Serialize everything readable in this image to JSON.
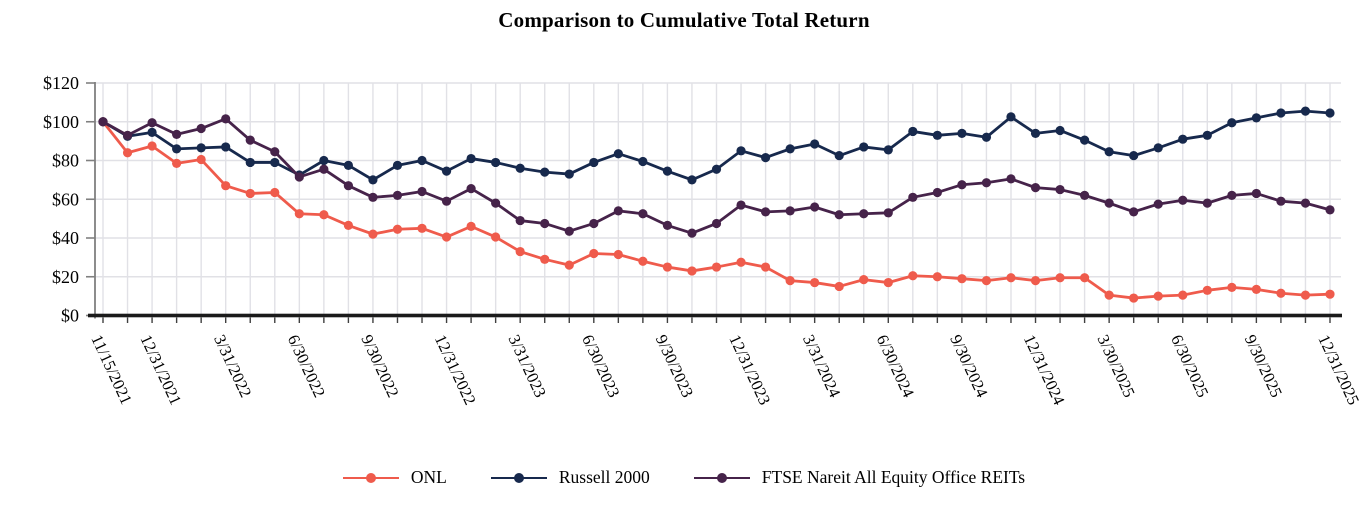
{
  "title": "Comparison to Cumulative Total Return",
  "legend": {
    "items": [
      {
        "label": "ONL",
        "color": "#EF5B4C"
      },
      {
        "label": "Russell 2000",
        "color": "#17294D"
      },
      {
        "label": "FTSE Nareit All Equity Office REITs",
        "color": "#46234A"
      }
    ]
  },
  "chart_data": {
    "type": "line",
    "title": "Comparison to Cumulative Total Return",
    "xlabel": "",
    "ylabel": "",
    "ylim": [
      0,
      120
    ],
    "y_step": 20,
    "y_tick_labels": [
      "$120",
      "$100",
      "$80",
      "$60",
      "$40",
      "$20",
      "$0"
    ],
    "grid": "both",
    "legend_position": "bottom",
    "points_per_series": 51,
    "point_frequency": "monthly",
    "x_tick_labels": [
      "11/15/2021",
      "12/31/2021",
      "3/31/2022",
      "6/30/2022",
      "9/30/2022",
      "12/31/2022",
      "3/31/2023",
      "6/30/2023",
      "9/30/2023",
      "12/31/2023",
      "3/31/2024",
      "6/30/2024",
      "9/30/2024",
      "12/31/2024",
      "3/30/2025",
      "6/30/2025",
      "9/30/2025",
      "12/31/2025"
    ],
    "x_tick_point_indices": [
      0,
      2,
      5,
      8,
      11,
      14,
      17,
      20,
      23,
      26,
      29,
      32,
      35,
      38,
      41,
      44,
      47,
      50
    ],
    "series": [
      {
        "name": "ONL",
        "color": "#EF5B4C",
        "values": [
          100,
          84,
          87.5,
          78.5,
          80.5,
          67,
          63,
          63.5,
          52.5,
          52,
          46.5,
          42,
          44.5,
          45,
          40.5,
          46,
          40.5,
          33,
          29,
          26,
          32,
          31.5,
          28,
          25,
          23,
          25,
          27.5,
          25,
          18,
          17,
          15,
          18.5,
          17,
          20.5,
          20,
          19,
          18,
          19.5,
          18,
          19.5,
          19.5,
          10.5,
          9,
          10,
          10.5,
          13,
          14.5,
          13.5,
          11.5,
          10.5,
          11
        ]
      },
      {
        "name": "Russell 2000",
        "color": "#17294D",
        "values": [
          100,
          92.5,
          94.5,
          86,
          86.5,
          87,
          79,
          79,
          72.5,
          80,
          77.5,
          70,
          77.5,
          80,
          74.5,
          81,
          79,
          76,
          74,
          73,
          79,
          83.5,
          79.5,
          74.5,
          70,
          75.5,
          85,
          81.5,
          86,
          88.5,
          82.5,
          87,
          85.5,
          95,
          93,
          94,
          92,
          102.5,
          94,
          95.5,
          90.5,
          84.5,
          82.5,
          86.5,
          91,
          93,
          99.5,
          102,
          104.5,
          105.5,
          104.5
        ]
      },
      {
        "name": "FTSE Nareit All Equity Office REITs",
        "color": "#46234A",
        "values": [
          100,
          93,
          99.5,
          93.5,
          96.5,
          101.5,
          90.5,
          84.5,
          71.5,
          75.5,
          67,
          61,
          62,
          64,
          59,
          65.5,
          58,
          49,
          47.5,
          43.5,
          47.5,
          54,
          52.5,
          46.5,
          42.5,
          47.5,
          57,
          53.5,
          54,
          56,
          52,
          52.5,
          53,
          61,
          63.5,
          67.5,
          68.5,
          70.5,
          66,
          65,
          62,
          58,
          53.5,
          57.5,
          59.5,
          58,
          62,
          63,
          59,
          58,
          54.5
        ]
      }
    ],
    "colors": {
      "gridline": "#E1E1E6",
      "y_axis_line": "#808080",
      "y_tick": "#808080",
      "x_tick": "#404040",
      "x_axis_line": "#1A1A1A",
      "label_text": "#000000"
    }
  }
}
